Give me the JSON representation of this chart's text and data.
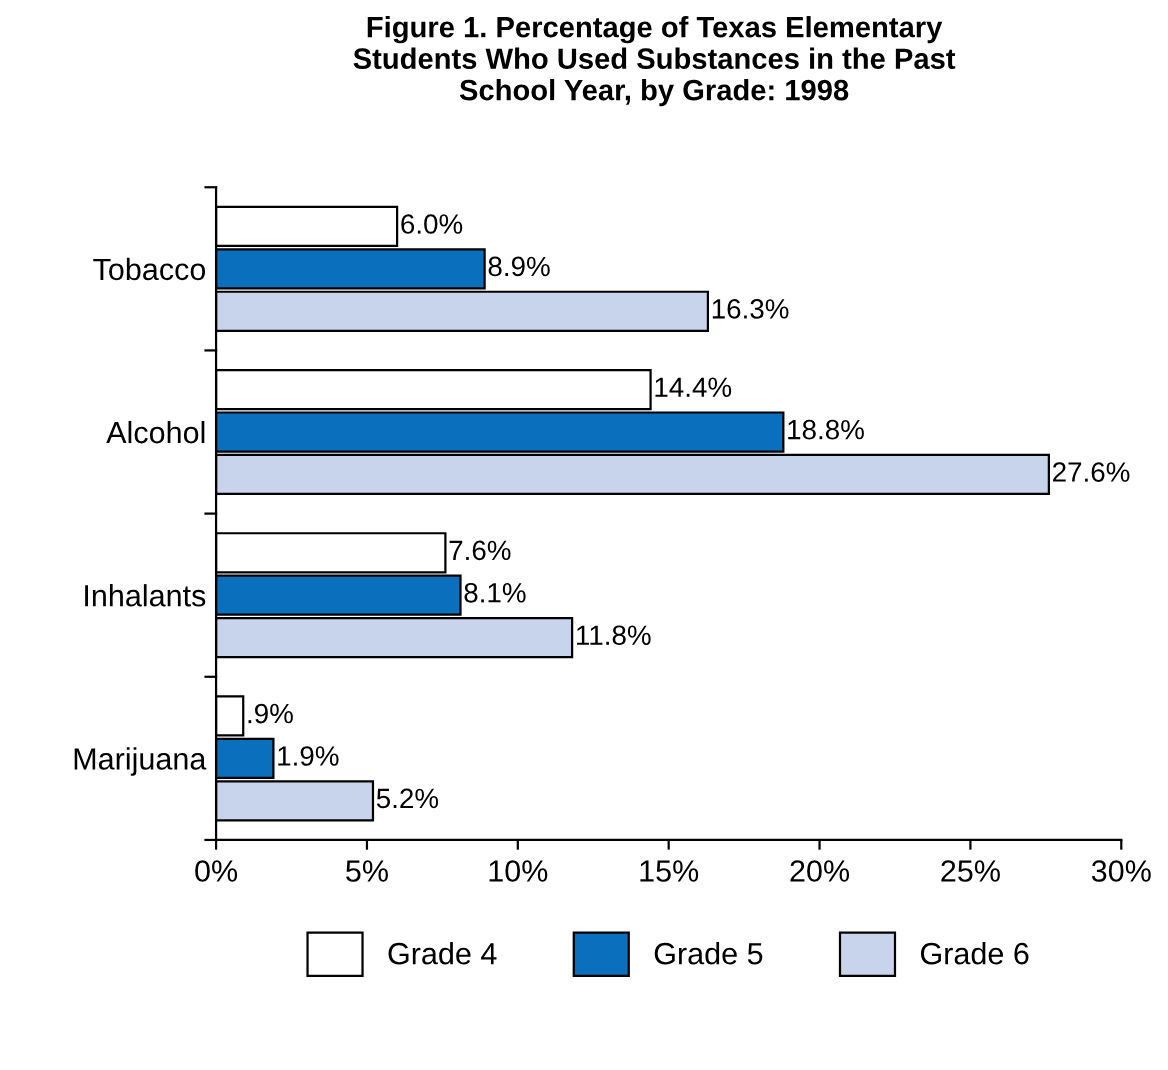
{
  "chart_data": {
    "type": "bar",
    "orientation": "horizontal",
    "title": "Figure 1. Percentage of Texas Elementary\nStudents Who Used Substances in the Past\nSchool Year, by Grade: 1998",
    "categories": [
      "Tobacco",
      "Alcohol",
      "Inhalants",
      "Marijuana"
    ],
    "series": [
      {
        "name": "Grade 4",
        "color": "#ffffff",
        "values": [
          6.0,
          14.4,
          7.6,
          0.9
        ],
        "value_labels": [
          "6.0%",
          "14.4%",
          "7.6%",
          ".9%"
        ]
      },
      {
        "name": "Grade 5",
        "color": "#0a6fbd",
        "values": [
          8.9,
          18.8,
          8.1,
          1.9
        ],
        "value_labels": [
          "8.9%",
          "18.8%",
          "8.1%",
          "1.9%"
        ]
      },
      {
        "name": "Grade 6",
        "color": "#c8d4ec",
        "values": [
          16.3,
          27.6,
          11.8,
          5.2
        ],
        "value_labels": [
          "16.3%",
          "27.6%",
          "11.8%",
          "5.2%"
        ]
      }
    ],
    "xlim": [
      0,
      30
    ],
    "xticks": [
      {
        "value": 0,
        "label": "0%"
      },
      {
        "value": 5,
        "label": "5%"
      },
      {
        "value": 10,
        "label": "10%"
      },
      {
        "value": 15,
        "label": "15%"
      },
      {
        "value": 20,
        "label": "20%"
      },
      {
        "value": 25,
        "label": "25%"
      },
      {
        "value": 30,
        "label": "30%"
      }
    ],
    "grid": false,
    "legend": "bottom"
  }
}
